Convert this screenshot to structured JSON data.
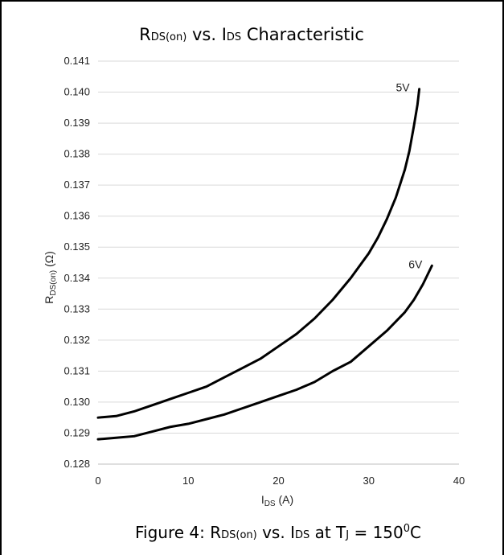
{
  "chart_data": {
    "type": "line",
    "title": {
      "main": "R",
      "sub1": "DS(on)",
      "mid": " vs. I",
      "sub2": "DS",
      "tail": " Characteristic"
    },
    "xlabel": {
      "main": "I",
      "sub": "DS",
      "tail": " (A)"
    },
    "ylabel": {
      "main": "R",
      "sub": "DS(on)",
      "tail": " (Ω)"
    },
    "xlim": [
      0,
      40
    ],
    "ylim": [
      0.128,
      0.141
    ],
    "x_ticks": [
      "0",
      "10",
      "20",
      "30",
      "40"
    ],
    "y_ticks": [
      "0.128",
      "0.129",
      "0.130",
      "0.131",
      "0.132",
      "0.133",
      "0.134",
      "0.135",
      "0.136",
      "0.137",
      "0.138",
      "0.139",
      "0.140",
      "0.141"
    ],
    "grid": "horizontal",
    "series": [
      {
        "name": "5V",
        "color": "#000000",
        "points": [
          [
            0,
            0.1295
          ],
          [
            2,
            0.12955
          ],
          [
            4,
            0.1297
          ],
          [
            6,
            0.1299
          ],
          [
            8,
            0.1301
          ],
          [
            10,
            0.1303
          ],
          [
            12,
            0.1305
          ],
          [
            14,
            0.1308
          ],
          [
            16,
            0.1311
          ],
          [
            18,
            0.1314
          ],
          [
            20,
            0.1318
          ],
          [
            22,
            0.1322
          ],
          [
            24,
            0.1327
          ],
          [
            26,
            0.1333
          ],
          [
            28,
            0.134
          ],
          [
            30,
            0.1348
          ],
          [
            31,
            0.1353
          ],
          [
            32,
            0.1359
          ],
          [
            33,
            0.1366
          ],
          [
            34,
            0.1375
          ],
          [
            34.5,
            0.1381
          ],
          [
            35,
            0.1389
          ],
          [
            35.4,
            0.1396
          ],
          [
            35.6,
            0.1401
          ]
        ]
      },
      {
        "name": "6V",
        "color": "#000000",
        "points": [
          [
            0,
            0.1288
          ],
          [
            2,
            0.12885
          ],
          [
            4,
            0.1289
          ],
          [
            6,
            0.12905
          ],
          [
            8,
            0.1292
          ],
          [
            10,
            0.1293
          ],
          [
            12,
            0.12945
          ],
          [
            14,
            0.1296
          ],
          [
            16,
            0.1298
          ],
          [
            18,
            0.13
          ],
          [
            20,
            0.1302
          ],
          [
            22,
            0.1304
          ],
          [
            24,
            0.13065
          ],
          [
            26,
            0.131
          ],
          [
            28,
            0.1313
          ],
          [
            30,
            0.1318
          ],
          [
            32,
            0.1323
          ],
          [
            34,
            0.1329
          ],
          [
            35,
            0.1333
          ],
          [
            36,
            0.1338
          ],
          [
            37,
            0.1344
          ]
        ]
      }
    ]
  },
  "caption": {
    "pre": "Figure 4: R",
    "sub1": "DS(on)",
    "mid": " vs. I",
    "sub2": "DS",
    "mid2": "  at T",
    "sub3": "J",
    "mid3": " = 150",
    "sup": "0",
    "tail": "C"
  }
}
